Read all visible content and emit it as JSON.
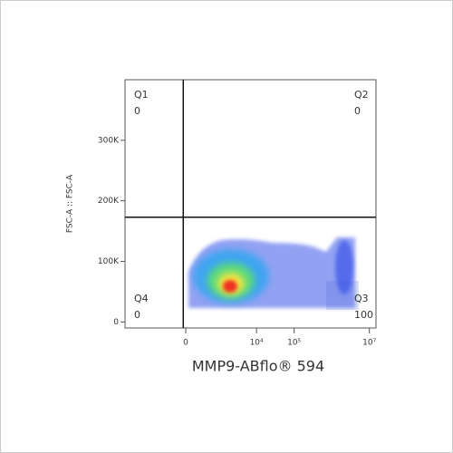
{
  "chart_data": {
    "type": "flow-density",
    "x_label": "MMP9-ABflo® 594",
    "y_label": "FSC-A :: FSC-A",
    "x_scale": "biexponential",
    "xlim": [
      -5400,
      15000000
    ],
    "xticks": [
      0,
      {
        "value": 10000,
        "label": "10⁴"
      },
      {
        "value": 100000,
        "label": "10⁵"
      },
      {
        "value": 10000000,
        "label": "10⁷"
      }
    ],
    "ylim": [
      -10000,
      400000
    ],
    "yticks": [
      0,
      {
        "value": 100000,
        "label": "100K"
      },
      {
        "value": 200000,
        "label": "200K"
      },
      {
        "value": 300000,
        "label": "300K"
      }
    ],
    "gates": {
      "x": -40,
      "y": 173000
    },
    "quadrants": [
      {
        "name": "Q1",
        "value": 0,
        "corner": "top-left"
      },
      {
        "name": "Q2",
        "value": 0,
        "corner": "top-right"
      },
      {
        "name": "Q3",
        "value": 100,
        "corner": "bottom-right"
      },
      {
        "name": "Q4",
        "value": 0,
        "corner": "bottom-left"
      }
    ]
  }
}
